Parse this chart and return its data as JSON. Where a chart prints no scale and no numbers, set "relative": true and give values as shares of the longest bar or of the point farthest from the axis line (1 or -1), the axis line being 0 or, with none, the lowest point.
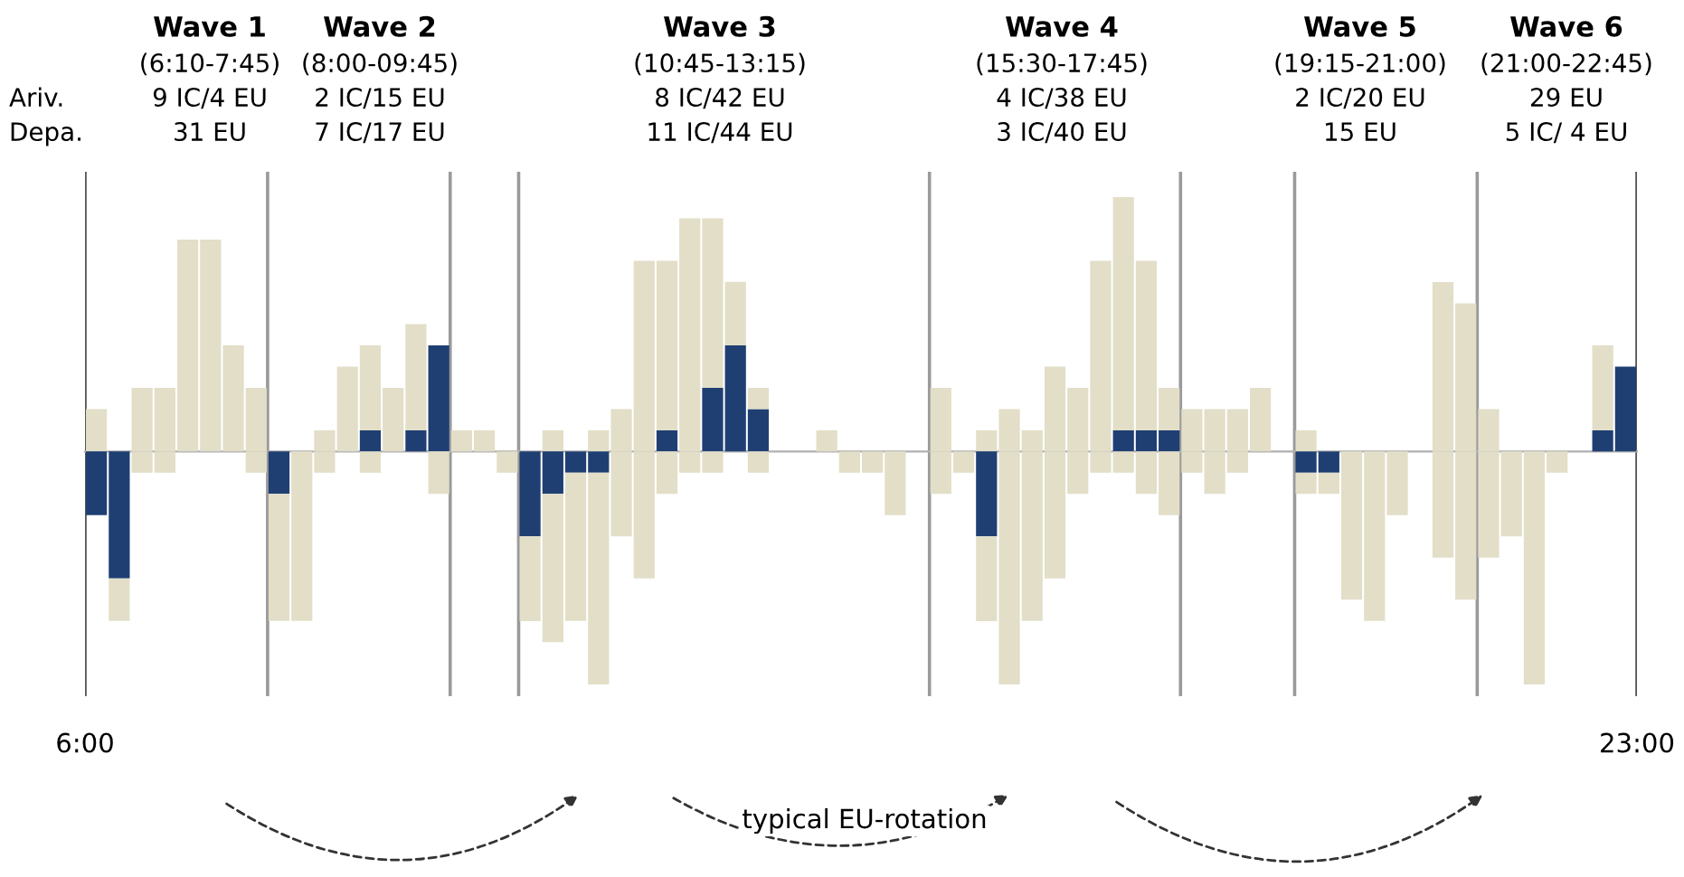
{
  "chart_data": {
    "type": "bar",
    "relative": true,
    "stacked": true,
    "x": [
      6.125,
      6.375,
      6.625,
      6.875,
      7.125,
      7.375,
      7.625,
      7.875,
      8.125,
      8.375,
      8.625,
      8.875,
      9.125,
      9.375,
      9.625,
      9.875,
      10.125,
      10.375,
      10.625,
      10.875,
      11.125,
      11.375,
      11.625,
      11.875,
      12.125,
      12.375,
      12.625,
      12.875,
      13.125,
      13.375,
      13.625,
      13.875,
      14.125,
      14.375,
      14.625,
      14.875,
      15.125,
      15.375,
      15.625,
      15.875,
      16.125,
      16.375,
      16.625,
      16.875,
      17.125,
      17.375,
      17.625,
      17.875,
      18.125,
      18.375,
      18.625,
      18.875,
      19.125,
      19.375,
      19.625,
      19.875,
      20.125,
      20.375,
      20.625,
      20.875,
      21.125,
      21.375,
      21.625,
      21.875,
      22.125,
      22.375,
      22.625,
      22.875
    ],
    "series": [
      {
        "color": "#1f3f73",
        "values": [
          null,
          null,
          null,
          null,
          null,
          null,
          null,
          null,
          null,
          null,
          null,
          null,
          0.091,
          null,
          0.091,
          0.455,
          null,
          null,
          null,
          null,
          null,
          null,
          null,
          null,
          null,
          0.091,
          null,
          0.273,
          0.455,
          0.182,
          null,
          null,
          null,
          null,
          null,
          null,
          null,
          null,
          null,
          null,
          null,
          null,
          null,
          null,
          null,
          0.091,
          0.091,
          0.091,
          null,
          null,
          null,
          null,
          null,
          null,
          null,
          null,
          null,
          null,
          null,
          null,
          null,
          null,
          null,
          null,
          null,
          null,
          0.091,
          0.364
        ]
      },
      {
        "color": "#e2dec8",
        "values": [
          0.182,
          null,
          0.273,
          0.273,
          0.909,
          0.909,
          0.455,
          0.273,
          null,
          null,
          0.091,
          0.364,
          0.364,
          0.273,
          0.455,
          null,
          0.091,
          0.091,
          null,
          null,
          0.091,
          null,
          0.091,
          0.182,
          0.818,
          0.727,
          1,
          0.727,
          0.273,
          0.091,
          null,
          null,
          0.091,
          null,
          null,
          null,
          null,
          0.273,
          null,
          0.091,
          0.182,
          0.091,
          0.364,
          0.273,
          0.818,
          1,
          0.727,
          0.182,
          0.182,
          0.182,
          0.182,
          0.273,
          null,
          0.091,
          null,
          null,
          null,
          null,
          null,
          0.727,
          0.636,
          0.182,
          null,
          null,
          null,
          null,
          0.364,
          null
        ]
      },
      {
        "color": "#1f3f73",
        "values": [
          -0.273,
          -0.545,
          null,
          null,
          null,
          null,
          null,
          null,
          -0.182,
          null,
          null,
          null,
          null,
          null,
          null,
          null,
          null,
          null,
          null,
          -0.364,
          -0.182,
          -0.091,
          -0.091,
          null,
          null,
          null,
          null,
          null,
          null,
          null,
          null,
          null,
          null,
          null,
          null,
          null,
          null,
          null,
          null,
          -0.364,
          null,
          null,
          null,
          null,
          null,
          null,
          null,
          null,
          null,
          null,
          null,
          null,
          null,
          -0.091,
          -0.091,
          null,
          null,
          null,
          null,
          null,
          null,
          null,
          null,
          null,
          null,
          null,
          null,
          null
        ]
      },
      {
        "color": "#e2dec8",
        "values": [
          null,
          -0.182,
          -0.091,
          -0.091,
          null,
          null,
          null,
          -0.091,
          -0.545,
          -0.727,
          -0.091,
          null,
          -0.091,
          null,
          null,
          -0.182,
          null,
          null,
          -0.091,
          -0.364,
          -0.636,
          -0.636,
          -0.909,
          -0.364,
          -0.545,
          -0.182,
          -0.091,
          -0.091,
          null,
          -0.091,
          null,
          null,
          null,
          -0.091,
          -0.091,
          -0.273,
          null,
          -0.182,
          -0.091,
          -0.364,
          -1,
          -0.727,
          -0.545,
          -0.182,
          -0.091,
          -0.091,
          -0.182,
          -0.273,
          -0.091,
          -0.182,
          -0.091,
          null,
          null,
          -0.091,
          -0.091,
          -0.636,
          -0.727,
          -0.273,
          null,
          -0.455,
          -0.636,
          -0.455,
          -0.364,
          -1,
          -0.091,
          null,
          null,
          null
        ]
      }
    ],
    "xlim": [
      6,
      23
    ],
    "xticks": [
      {
        "value": 6,
        "label": "6:00"
      },
      {
        "value": 23,
        "label": "23:00"
      }
    ],
    "tick_labels": "x",
    "ref_lines": [
      {
        "axis": "x",
        "value": 6,
        "color": "#555555"
      },
      {
        "axis": "x",
        "value": 8,
        "color": "#9a9a9a"
      },
      {
        "axis": "x",
        "value": 10,
        "color": "#9a9a9a"
      },
      {
        "axis": "x",
        "value": 10.75,
        "color": "#9a9a9a"
      },
      {
        "axis": "x",
        "value": 15.25,
        "color": "#9a9a9a"
      },
      {
        "axis": "x",
        "value": 18,
        "color": "#9a9a9a"
      },
      {
        "axis": "x",
        "value": 19.25,
        "color": "#9a9a9a"
      },
      {
        "axis": "x",
        "value": 21.25,
        "color": "#9a9a9a"
      },
      {
        "axis": "x",
        "value": 23,
        "color": "#555555"
      }
    ],
    "annotations": [
      "Wave 1",
      "(6:10-7:45)",
      "9 IC/4 EU",
      "31 EU",
      "Wave 2",
      "(8:00-09:45)",
      "2 IC/15 EU",
      "7 IC/17 EU",
      "Wave 3",
      "(10:45-13:15)",
      "8 IC/42 EU",
      "11 IC/44 EU",
      "Wave 4",
      "(15:30-17:45)",
      "4 IC/38 EU",
      "3 IC/40 EU",
      "Wave 5",
      "(19:15-21:00)",
      "2 IC/20 EU",
      "15 EU",
      "Wave 6",
      "(21:00-22:45)",
      "29 EU",
      "5 IC/ 4 EU",
      "Ariv.",
      "Depa.",
      "typical EU-rotation"
    ]
  }
}
